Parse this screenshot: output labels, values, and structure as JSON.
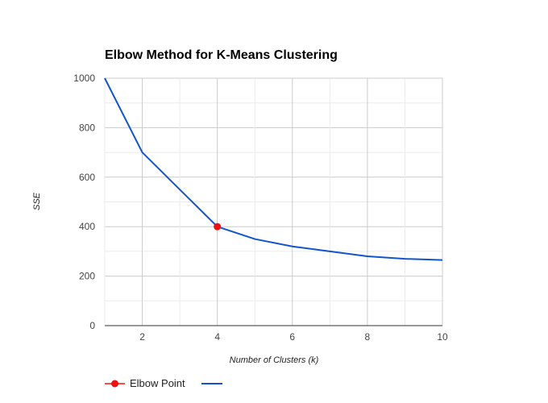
{
  "chart_data": {
    "type": "line",
    "title": "Elbow Method for K-Means Clustering",
    "xlabel": "Number of Clusters (k)",
    "ylabel": "SSE",
    "xlim": [
      1,
      10
    ],
    "ylim": [
      0,
      1000
    ],
    "x_ticks": [
      2,
      4,
      6,
      8,
      10
    ],
    "y_ticks": [
      0,
      200,
      400,
      600,
      800,
      1000
    ],
    "grid": true,
    "legend_position": "bottom",
    "series": [
      {
        "name": "Elbow Point",
        "type": "point",
        "color": "#ee1111",
        "x": [
          4
        ],
        "y": [
          400
        ]
      },
      {
        "name": "",
        "type": "line",
        "color": "#1155cc",
        "x": [
          1,
          2,
          3,
          4,
          5,
          6,
          7,
          8,
          9,
          10
        ],
        "y": [
          1000,
          700,
          550,
          400,
          350,
          320,
          300,
          280,
          270,
          265
        ]
      }
    ]
  }
}
